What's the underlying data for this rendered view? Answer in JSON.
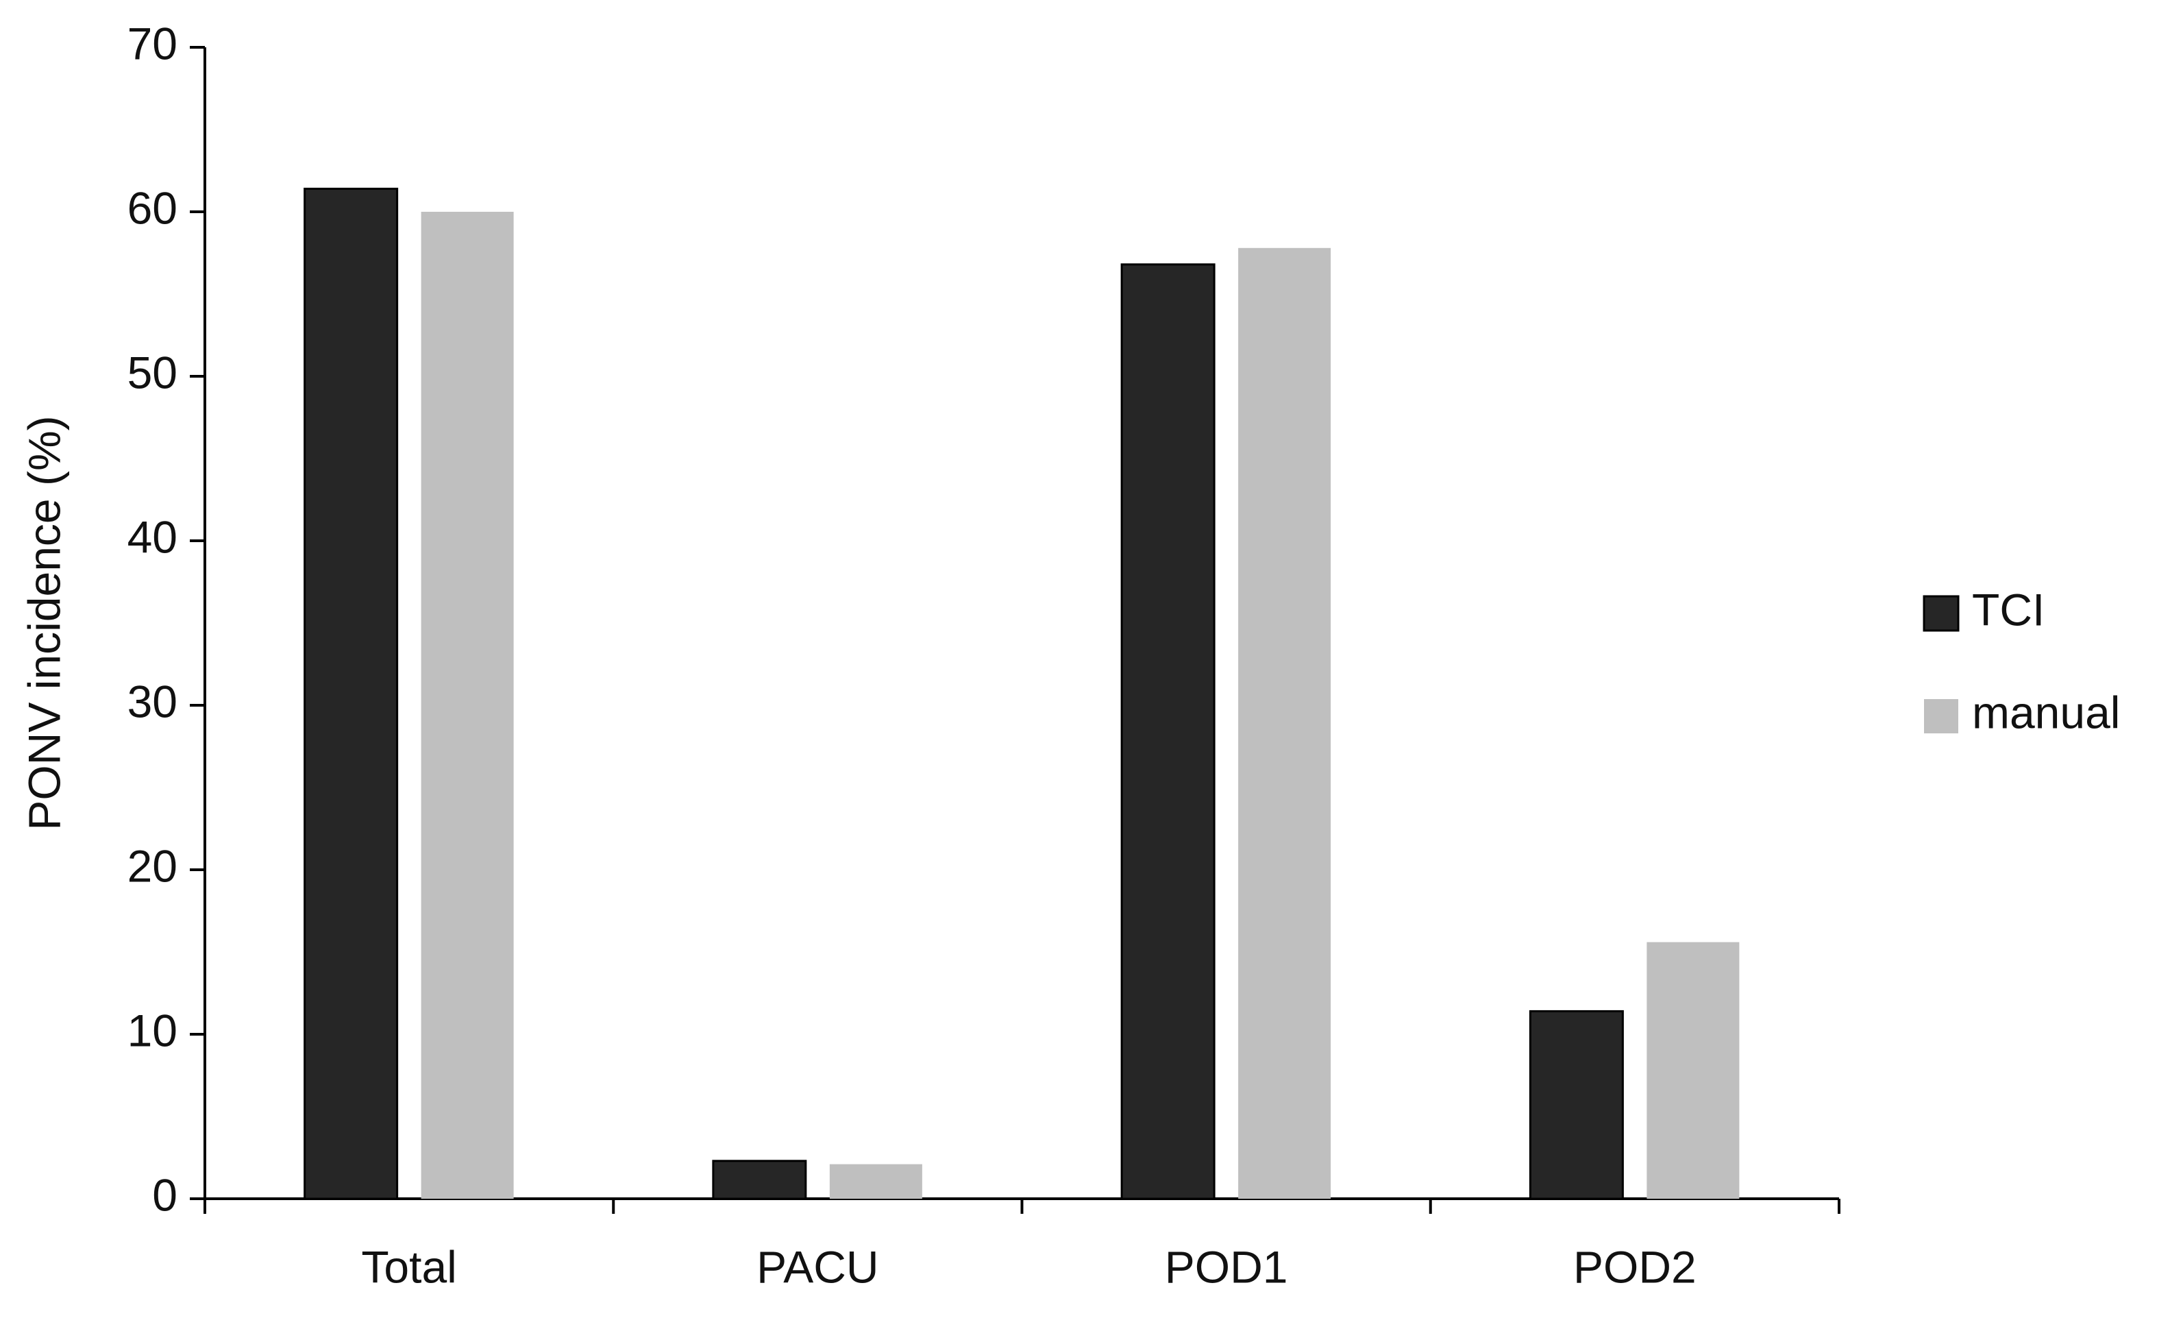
{
  "chart_data": {
    "type": "bar",
    "y_label": "PONV incidence (%)",
    "categories": [
      "Total",
      "PACU",
      "POD1",
      "POD2"
    ],
    "series": [
      {
        "name": "TCI",
        "color": "#262626",
        "values": [
          61.4,
          2.3,
          56.8,
          11.4
        ]
      },
      {
        "name": "manual",
        "color": "#bfbfbf",
        "values": [
          60.0,
          2.1,
          57.8,
          15.6
        ]
      }
    ],
    "ylim": [
      0,
      70
    ],
    "yticks": [
      0,
      10,
      20,
      30,
      40,
      50,
      60,
      70
    ],
    "grid": false,
    "legend": "right"
  }
}
